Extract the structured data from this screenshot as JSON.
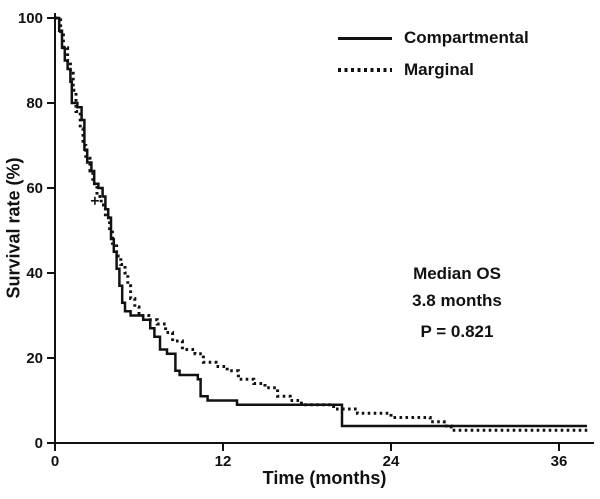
{
  "chart_data": {
    "type": "line",
    "subtype": "kaplan-meier-step",
    "title": "",
    "xlabel": "Time (months)",
    "ylabel": "Survival rate (%)",
    "xlim": [
      0,
      38.5
    ],
    "ylim": [
      0,
      100
    ],
    "x_ticks": [
      0,
      12,
      24,
      36
    ],
    "y_ticks": [
      0,
      20,
      40,
      60,
      80,
      100
    ],
    "grid": false,
    "legend_position": "top-right-inside",
    "annotations": [
      "Median OS",
      "3.8 months",
      "P = 0.821"
    ],
    "series": [
      {
        "name": "Compartmental",
        "style": "solid",
        "color": "#111111",
        "step": true,
        "points": [
          [
            0,
            100
          ],
          [
            0.3,
            97
          ],
          [
            0.5,
            93
          ],
          [
            0.7,
            90
          ],
          [
            0.9,
            88
          ],
          [
            1.1,
            85
          ],
          [
            1.2,
            80
          ],
          [
            1.6,
            79
          ],
          [
            1.9,
            76
          ],
          [
            2.1,
            69
          ],
          [
            2.3,
            66
          ],
          [
            2.6,
            64
          ],
          [
            2.8,
            61
          ],
          [
            3.1,
            60
          ],
          [
            3.4,
            58
          ],
          [
            3.6,
            55
          ],
          [
            3.8,
            53
          ],
          [
            4.0,
            48
          ],
          [
            4.2,
            45
          ],
          [
            4.4,
            41
          ],
          [
            4.6,
            37
          ],
          [
            4.8,
            33
          ],
          [
            5.0,
            31
          ],
          [
            5.4,
            30
          ],
          [
            6.3,
            29
          ],
          [
            6.8,
            27
          ],
          [
            7.1,
            25
          ],
          [
            7.5,
            22
          ],
          [
            8.0,
            21
          ],
          [
            8.6,
            17
          ],
          [
            8.9,
            16
          ],
          [
            10.2,
            15
          ],
          [
            10.4,
            11
          ],
          [
            10.9,
            10
          ],
          [
            13.0,
            9
          ],
          [
            20.3,
            9
          ],
          [
            20.5,
            4
          ],
          [
            38.0,
            4
          ]
        ],
        "censor_marks": []
      },
      {
        "name": "Marginal",
        "style": "dotted",
        "color": "#111111",
        "step": true,
        "points": [
          [
            0,
            100
          ],
          [
            0.4,
            96
          ],
          [
            0.6,
            93
          ],
          [
            0.9,
            90
          ],
          [
            1.1,
            87
          ],
          [
            1.3,
            83
          ],
          [
            1.5,
            78
          ],
          [
            1.8,
            74
          ],
          [
            2.0,
            70
          ],
          [
            2.2,
            67
          ],
          [
            2.5,
            64
          ],
          [
            2.7,
            61
          ],
          [
            3.0,
            58
          ],
          [
            3.3,
            56
          ],
          [
            3.6,
            53
          ],
          [
            3.9,
            50
          ],
          [
            4.1,
            47
          ],
          [
            4.4,
            44
          ],
          [
            4.7,
            42
          ],
          [
            5.0,
            40
          ],
          [
            5.2,
            37
          ],
          [
            5.4,
            34
          ],
          [
            5.7,
            32
          ],
          [
            6.0,
            30
          ],
          [
            6.7,
            29
          ],
          [
            7.3,
            28
          ],
          [
            7.9,
            26
          ],
          [
            8.4,
            24
          ],
          [
            9.1,
            22
          ],
          [
            10.0,
            21
          ],
          [
            10.6,
            19
          ],
          [
            11.5,
            18
          ],
          [
            12.3,
            17
          ],
          [
            13.1,
            15
          ],
          [
            14.2,
            14
          ],
          [
            15.0,
            13
          ],
          [
            15.9,
            11
          ],
          [
            16.8,
            10
          ],
          [
            17.6,
            9
          ],
          [
            19.9,
            8
          ],
          [
            21.6,
            7
          ],
          [
            24.0,
            6
          ],
          [
            26.8,
            5
          ],
          [
            27.8,
            4
          ],
          [
            28.3,
            3
          ],
          [
            38.2,
            3
          ]
        ],
        "censor_marks": [
          [
            2.85,
            57
          ]
        ]
      }
    ]
  }
}
